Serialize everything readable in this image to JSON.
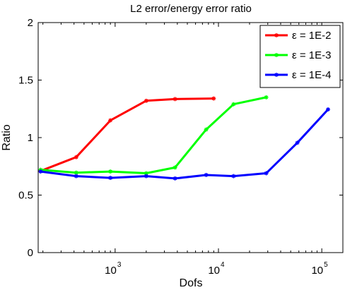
{
  "chart_data": {
    "type": "line",
    "title": "L2 error/energy error ratio",
    "xlabel": "Dofs",
    "ylabel": "Ratio",
    "xscale": "log",
    "xlim": [
      180,
      160000
    ],
    "ylim": [
      0,
      2
    ],
    "yticks": [
      0,
      0.5,
      1,
      1.5,
      2
    ],
    "ytick_labels": [
      "0",
      "0.5",
      "1",
      "1.5",
      "2"
    ],
    "xticks": [
      {
        "value": 1000,
        "base": "10",
        "exp": "3"
      },
      {
        "value": 10000,
        "base": "10",
        "exp": "4"
      },
      {
        "value": 100000,
        "base": "10",
        "exp": "5"
      }
    ],
    "grid": false,
    "legend_position": "top-right",
    "series": [
      {
        "name": "ε = 1E-2",
        "color": "#ff0000",
        "x": [
          190,
          420,
          900,
          2000,
          3800,
          9000
        ],
        "y": [
          0.71,
          0.83,
          1.15,
          1.32,
          1.335,
          1.34
        ]
      },
      {
        "name": "ε = 1E-3",
        "color": "#00ff00",
        "x": [
          190,
          420,
          900,
          2000,
          3800,
          7600,
          14000,
          29000
        ],
        "y": [
          0.72,
          0.695,
          0.705,
          0.69,
          0.74,
          1.07,
          1.29,
          1.35
        ]
      },
      {
        "name": "ε = 1E-4",
        "color": "#0000ff",
        "x": [
          190,
          420,
          900,
          2000,
          3800,
          7600,
          14000,
          29000,
          58000,
          115000
        ],
        "y": [
          0.705,
          0.665,
          0.65,
          0.665,
          0.645,
          0.675,
          0.665,
          0.69,
          0.955,
          1.245
        ]
      }
    ]
  }
}
